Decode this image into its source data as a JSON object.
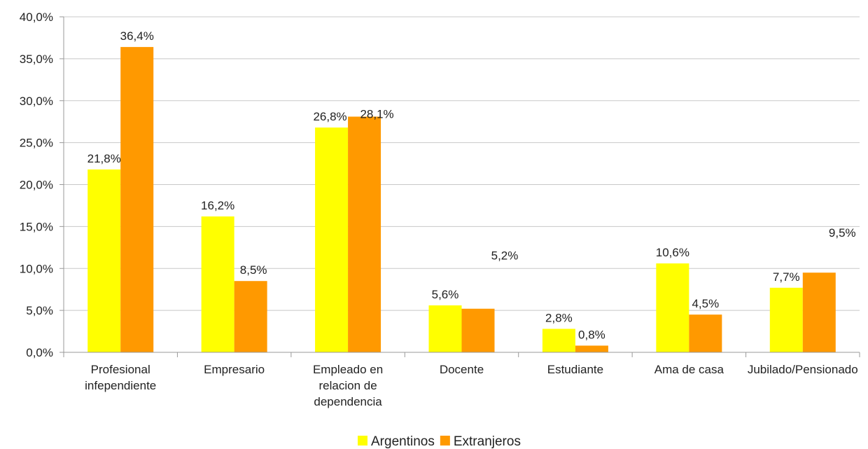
{
  "chart_data": {
    "type": "bar",
    "categories": [
      [
        "Profesional",
        "infependiente"
      ],
      [
        "Empresario"
      ],
      [
        "Empleado en",
        "relacion de",
        "dependencia"
      ],
      [
        "Docente"
      ],
      [
        "Estudiante"
      ],
      [
        "Ama de casa"
      ],
      [
        "Jubilado/Pensionado"
      ]
    ],
    "series": [
      {
        "name": "Argentinos",
        "color": "#ffff00",
        "values": [
          21.8,
          16.2,
          26.8,
          5.6,
          2.8,
          10.6,
          7.7
        ],
        "labels": [
          "21,8%",
          "16,2%",
          "26,8%",
          "5,6%",
          "2,8%",
          "10,6%",
          "7,7%"
        ]
      },
      {
        "name": "Extranjeros",
        "color": "#ff9900",
        "values": [
          36.4,
          8.5,
          28.1,
          5.2,
          0.8,
          4.5,
          9.5
        ],
        "labels": [
          "36,4%",
          "8,5%",
          "28,1%",
          "5,2%",
          "0,8%",
          "4,5%",
          "9,5%"
        ]
      }
    ],
    "y_ticks": [
      0,
      5,
      10,
      15,
      20,
      25,
      30,
      35,
      40
    ],
    "y_tick_labels": [
      "0,0%",
      "5,0%",
      "10,0%",
      "15,0%",
      "20,0%",
      "25,0%",
      "30,0%",
      "35,0%",
      "40,0%"
    ],
    "ylim": [
      0,
      40
    ],
    "grid": true,
    "legend_position": "bottom"
  }
}
